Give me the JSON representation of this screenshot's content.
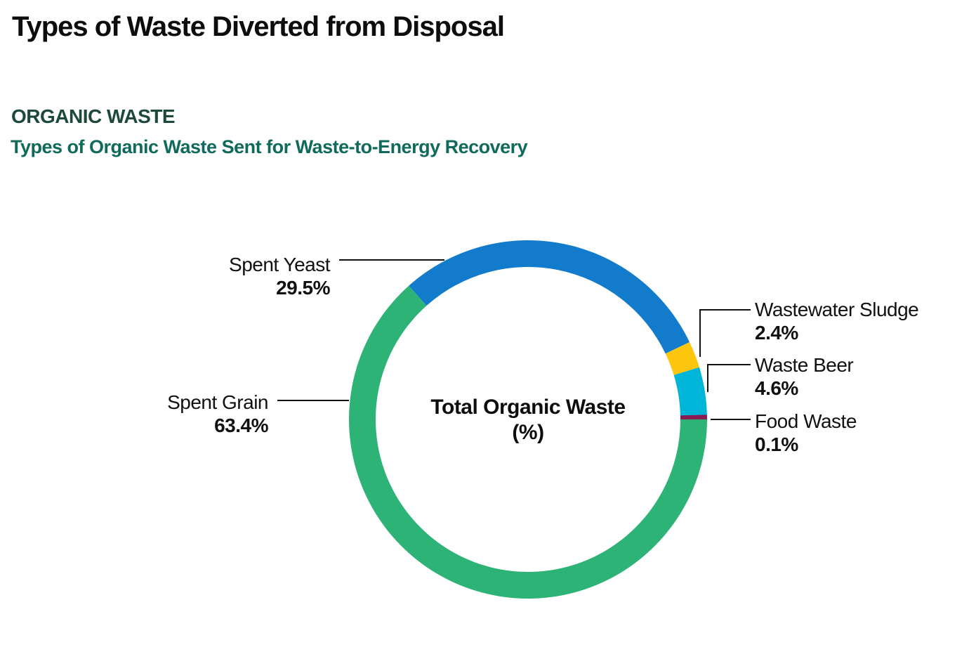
{
  "page": {
    "title": "Types of Waste Diverted from Disposal",
    "section_heading": "ORGANIC WASTE",
    "section_subheading": "Types of Organic Waste Sent for Waste-to-Energy Recovery"
  },
  "chart_data": {
    "type": "pie",
    "variant": "donut",
    "title": "Types of Organic Waste Sent for Waste-to-Energy Recovery",
    "center_label_line1": "Total Organic Waste",
    "center_label_line2": "(%)",
    "unit": "%",
    "start_angle_deg": 90,
    "direction": "clockwise",
    "legend_position": "callout-labels",
    "segments": [
      {
        "label": "Spent Grain",
        "value": 63.4,
        "display": "63.4%",
        "color": "#2db375"
      },
      {
        "label": "Spent Yeast",
        "value": 29.5,
        "display": "29.5%",
        "color": "#137bcb"
      },
      {
        "label": "Wastewater Sludge",
        "value": 2.4,
        "display": "2.4%",
        "color": "#fdc60d"
      },
      {
        "label": "Waste Beer",
        "value": 4.6,
        "display": "4.6%",
        "color": "#00b5d8"
      },
      {
        "label": "Food Waste",
        "value": 0.1,
        "display": "0.1%",
        "color": "#8a1a52"
      }
    ]
  },
  "colors": {
    "title_text": "#0d0d0d",
    "section_heading_text": "#1d4a38",
    "section_subheading_text": "#0f6a5c",
    "callout_text": "#111111",
    "leader_line": "#111111",
    "background": "#ffffff"
  }
}
